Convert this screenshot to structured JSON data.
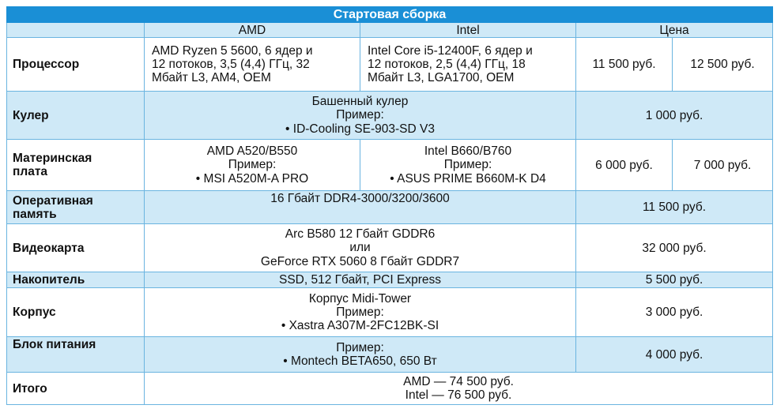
{
  "table": {
    "title": "Стартовая сборка",
    "headers": {
      "blank": "",
      "amd": "AMD",
      "intel": "Intel",
      "price": "Цена"
    },
    "cpu": {
      "label": "Процессор",
      "amd_lines": [
        "AMD Ryzen 5 5600, 6 ядер и",
        "12 потоков, 3,5 (4,4) ГГц, 32",
        "Мбайт L3, AM4, OEM"
      ],
      "intel_lines": [
        "Intel Core i5-12400F, 6 ядер и",
        "12 потоков, 2,5 (4,4) ГГц, 18",
        "Мбайт L3, LGA1700, OEM"
      ],
      "price_amd": "11 500 руб.",
      "price_intel": "12 500 руб."
    },
    "cooler": {
      "label": "Кулер",
      "lines": [
        "Башенный кулер",
        "Пример:",
        "• ID-Cooling SE-903-SD V3"
      ],
      "price": "1 000 руб."
    },
    "motherboard": {
      "label_lines": [
        "Материнская",
        "плата"
      ],
      "amd_lines": [
        "AMD A520/B550",
        "Пример:",
        "• MSI A520M-A PRO"
      ],
      "intel_lines": [
        "Intel B660/B760",
        "Пример:",
        "• ASUS PRIME B660M-K D4"
      ],
      "price_amd": "6 000 руб.",
      "price_intel": "7 000 руб."
    },
    "ram": {
      "label_lines": [
        "Оперативная",
        "память"
      ],
      "spec": "16 Гбайт DDR4-3000/3200/3600",
      "price": "11 500 руб."
    },
    "gpu": {
      "label": "Видеокарта",
      "lines": [
        "Arc B580 12 Гбайт GDDR6",
        "или",
        "GeForce RTX 5060 8 Гбайт GDDR7"
      ],
      "price": "32 000 руб."
    },
    "storage": {
      "label": "Накопитель",
      "spec": "SSD, 512 Гбайт, PCI Express",
      "price": "5 500 руб."
    },
    "case": {
      "label": "Корпус",
      "lines": [
        "Корпус Midi-Tower",
        "Пример:",
        "• Xastra A307M-2FC12BK-SI"
      ],
      "price": "3 000 руб."
    },
    "psu": {
      "label": "Блок питания",
      "lines": [
        "Пример:",
        "• Montech BETA650, 650 Вт"
      ],
      "price": "4 000 руб."
    },
    "total": {
      "label": "Итого",
      "lines": [
        "AMD — 74 500 руб.",
        "Intel — 76 500 руб."
      ]
    }
  }
}
